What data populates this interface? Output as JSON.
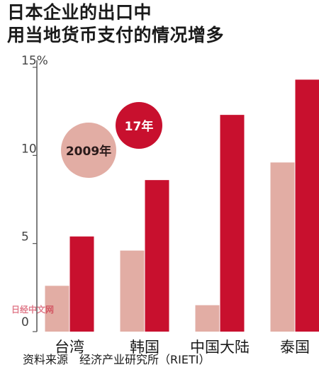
{
  "chart_data": {
    "type": "bar",
    "title": [
      "日本企业的出口中",
      "用当地货币支付的情况增多"
    ],
    "categories": [
      "台湾",
      "韩国",
      "中国大陆",
      "泰国"
    ],
    "series": [
      {
        "name": "2009年",
        "values": [
          2.6,
          4.6,
          1.5,
          9.6
        ]
      },
      {
        "name": "17年",
        "values": [
          5.4,
          8.6,
          12.3,
          14.3
        ]
      }
    ],
    "ylim": [
      0,
      15
    ],
    "yticks": [
      "0",
      "5",
      "10",
      "15%"
    ],
    "ytick_values": [
      0,
      5,
      10,
      15
    ],
    "grid": false,
    "legend": "bubbles-top-left",
    "source": "资料来源　经济产业研究所（RIETI）",
    "watermark": "日经中文网"
  },
  "colors": {
    "series_2009": "#e2ada4",
    "series_2017": "#c8102e",
    "axis": "#555555"
  }
}
